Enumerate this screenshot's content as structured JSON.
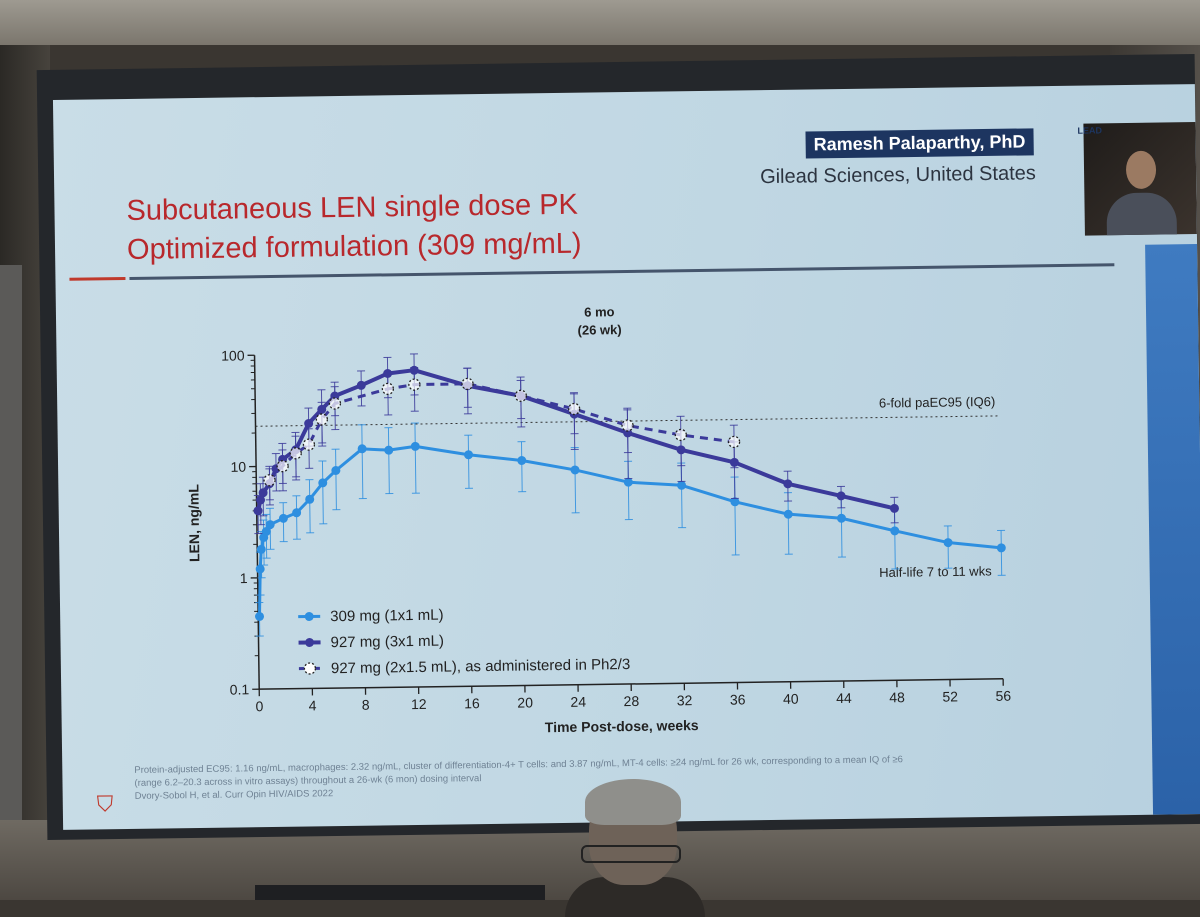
{
  "slide": {
    "title_line1": "Subcutaneous LEN single dose PK",
    "title_line2": "Optimized formulation (309 mg/mL)",
    "presenter_name": "Ramesh Palaparthy, PhD",
    "presenter_org": "Gilead Sciences, United States",
    "conference_logo": "LEAD",
    "footnote_line1": "Protein-adjusted EC95: 1.16 ng/mL, macrophages: 2.32 ng/mL, cluster of differentiation-4+ T cells: and 3.87 ng/mL, MT-4 cells: ≥24 ng/mL for 26 wk, corresponding to a mean IQ of ≥6",
    "footnote_line2": "(range 6.2–20.3 across in vitro assays) throughout a 26-wk (6 mon) dosing interval",
    "footnote_line3": "Dvory-Sobol H, et al. Curr Opin HIV/AIDS 2022",
    "colors": {
      "title": "#b8282c",
      "series_309": "#2e8fe0",
      "series_927": "#3b3a9a",
      "screen_bg": "#c6dbe6"
    }
  },
  "chart_data": {
    "type": "line",
    "y_scale": "log",
    "ylabel": "LEN, ng/mL",
    "xlabel": "Time Post-dose, weeks",
    "xlim": [
      0,
      56
    ],
    "ylim": [
      0.1,
      100
    ],
    "x_ticks": [
      0,
      4,
      8,
      12,
      16,
      20,
      24,
      28,
      32,
      36,
      40,
      44,
      48,
      52,
      56
    ],
    "y_ticks": [
      {
        "value": 0.1,
        "label": "0.1"
      },
      {
        "value": 1,
        "label": "1"
      },
      {
        "value": 10,
        "label": "10"
      },
      {
        "value": 100,
        "label": "100"
      }
    ],
    "reference_lines": [
      {
        "y": 23,
        "label": "6-fold paEC95 (IQ6)"
      },
      {
        "x": 26,
        "label_line1": "6 mo",
        "label_line2": "(26 wk)"
      }
    ],
    "annotation": "Half-life 7 to 11 wks",
    "legend_position": "bottom-left",
    "series": [
      {
        "name": "309 mg (1x1 mL)",
        "style": "solid-light",
        "x": [
          0.1,
          0.2,
          0.3,
          0.5,
          0.7,
          1,
          2,
          3,
          4,
          5,
          6,
          8,
          10,
          12,
          16,
          20,
          24,
          28,
          32,
          36,
          40,
          44,
          48,
          52,
          56
        ],
        "y": [
          0.45,
          1.2,
          1.8,
          2.3,
          2.6,
          3.0,
          3.4,
          3.8,
          5.0,
          7.0,
          9.0,
          14,
          13.5,
          14.5,
          12,
          10.5,
          8.5,
          6.5,
          6.0,
          4.2,
          3.2,
          2.9,
          2.2,
          1.7,
          1.5
        ],
        "err": [
          0.15,
          0.5,
          0.8,
          1.0,
          1.1,
          1.2,
          1.3,
          1.6,
          2.5,
          4.0,
          5.0,
          9.0,
          8.0,
          9.0,
          6.0,
          5.0,
          5.0,
          3.5,
          3.5,
          2.8,
          1.8,
          1.6,
          1.2,
          0.7,
          0.65
        ]
      },
      {
        "name": "927 mg (3x1 mL)",
        "style": "solid-dark",
        "x": [
          0.1,
          0.3,
          0.5,
          1,
          1.5,
          2,
          3,
          4,
          5,
          6,
          8,
          10,
          12,
          16,
          20,
          24,
          28,
          32,
          36,
          40,
          44,
          48
        ],
        "y": [
          4.0,
          5.0,
          5.8,
          7.0,
          9.5,
          11.5,
          14,
          24,
          32,
          42,
          52,
          66,
          70,
          50,
          40,
          27,
          18,
          12.5,
          9.5,
          6,
          4.6,
          3.5
        ],
        "err": [
          1.5,
          2.0,
          2.2,
          2.5,
          3.5,
          4.5,
          6.0,
          9.0,
          16,
          14,
          18,
          26,
          28,
          22,
          19,
          14,
          11,
          6,
          5,
          1.8,
          1.0,
          0.9
        ]
      },
      {
        "name": "927 mg (2x1.5 mL), as administered in Ph2/3",
        "style": "dashed-open",
        "x": [
          1,
          2,
          3,
          4,
          5,
          6,
          10,
          12,
          16,
          20,
          24,
          28,
          32,
          36
        ],
        "y": [
          7.5,
          10,
          13,
          15.5,
          26,
          36,
          48,
          52,
          52,
          40,
          30,
          21,
          17,
          14.5
        ],
        "err": [
          2.5,
          4.0,
          5.5,
          6.0,
          11,
          15,
          20,
          22,
          20,
          15,
          12,
          9,
          8,
          6
        ]
      }
    ]
  }
}
